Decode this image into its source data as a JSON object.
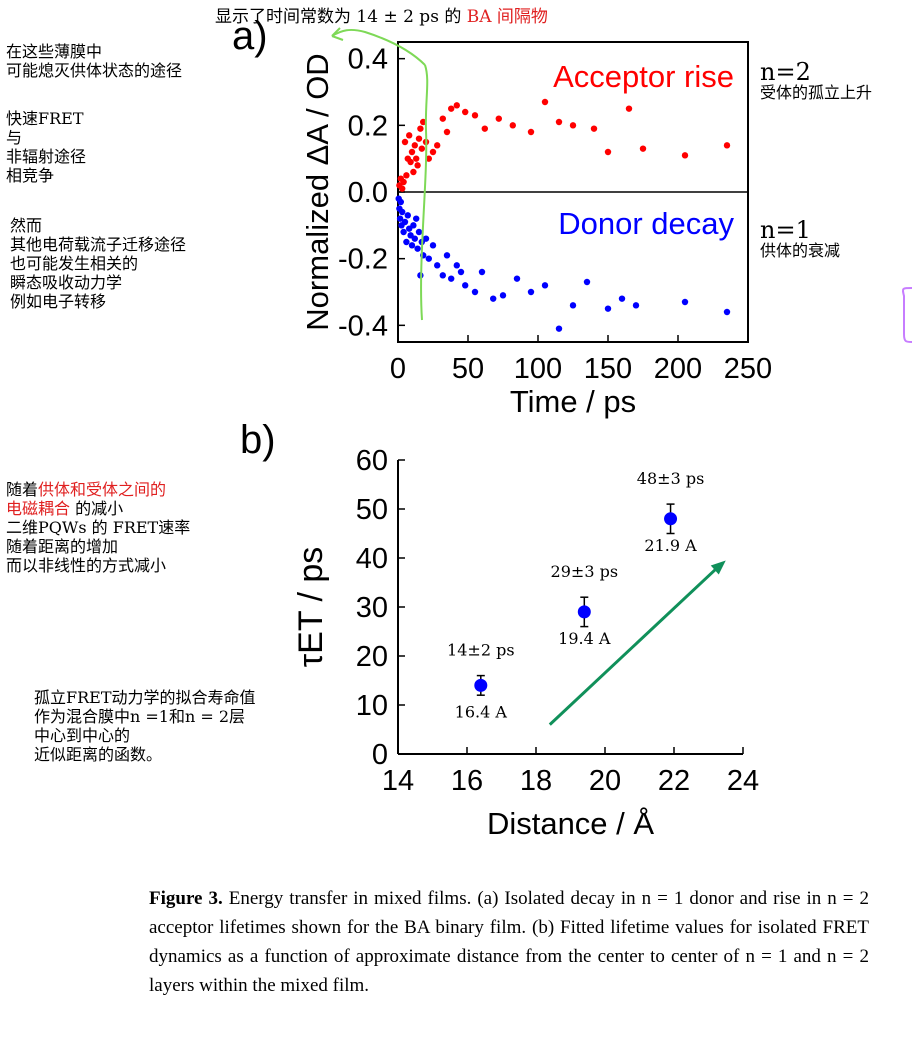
{
  "top_annotation": {
    "prefix": "显示了时间常数为 14 ± 2 ps 的 ",
    "highlight": "BA 间隔物"
  },
  "left_notes_a": {
    "block1": [
      "在这些薄膜中",
      "可能熄灭供体状态的途径"
    ],
    "block2": [
      "快速FRET",
      "与",
      "非辐射途径",
      "相竞争"
    ],
    "block3": [
      "然而",
      "其他电荷载流子迁移途径",
      "也可能发生相关的",
      "瞬态吸收动力学",
      "例如电子转移"
    ]
  },
  "left_notes_b": {
    "line1_prefix": "随着",
    "line1_highlight": "供体和受体之间的",
    "line2_highlight": "电磁耦合",
    "line2_suffix": " 的减小",
    "lines": [
      "二维PQWs 的 FRET速率",
      "随着距离的增加",
      "而以非线性的方式减小"
    ]
  },
  "left_notes_c": [
    "孤立FRET动力学的拟合寿命值",
    "作为混合膜中n =1和n = 2层",
    "中心到中心的",
    "近似距离的函数。"
  ],
  "right_notes": {
    "n2": "n=2",
    "n2_desc": "受体的孤立上升",
    "n1": "n=1",
    "n1_desc": "供体的衰减"
  },
  "panel_a_label": "a)",
  "panel_b_label": "b)",
  "caption": {
    "label": "Figure 3.",
    "text": " Energy transfer in mixed films. (a) Isolated decay in n = 1 donor and rise in n = 2 acceptor lifetimes shown for the BA binary film. (b) Fitted lifetime values for isolated FRET dynamics as a function of approximate distance from the center to center of n = 1 and n = 2 layers within the mixed film."
  },
  "colors": {
    "acceptor": "#ff0000",
    "donor": "#0000ff",
    "highlight": "#e02020",
    "arrow": "#10905a",
    "overlay_line": "#7ed957"
  },
  "chart_data": [
    {
      "type": "scatter",
      "xlabel": "Time / ps",
      "ylabel": "Normalized ΔA / OD",
      "xlim": [
        0,
        250
      ],
      "ylim": [
        -0.45,
        0.45
      ],
      "xticks": [
        "0",
        "50",
        "100",
        "150",
        "200",
        "250"
      ],
      "yticks": [
        "-0.4",
        "-0.2",
        "0.0",
        "0.2",
        "0.4"
      ],
      "annotations": [
        "Acceptor rise",
        "Donor decay"
      ],
      "zero_line": true,
      "series": [
        {
          "name": "Acceptor rise",
          "x": [
            1,
            2,
            3,
            4,
            5,
            6,
            7,
            8,
            9,
            10,
            11,
            12,
            13,
            14,
            15,
            16,
            17,
            18,
            20,
            22,
            25,
            28,
            32,
            35,
            38,
            42,
            48,
            55,
            62,
            72,
            82,
            95,
            105,
            115,
            125,
            140,
            150,
            165,
            175,
            205,
            235
          ],
          "y": [
            0.02,
            0.04,
            0.01,
            0.03,
            0.15,
            0.05,
            0.1,
            0.17,
            0.09,
            0.12,
            0.06,
            0.14,
            0.1,
            0.08,
            0.16,
            0.19,
            0.13,
            0.21,
            0.15,
            0.1,
            0.12,
            0.14,
            0.22,
            0.18,
            0.25,
            0.26,
            0.24,
            0.23,
            0.19,
            0.22,
            0.2,
            0.18,
            0.27,
            0.21,
            0.2,
            0.19,
            0.12,
            0.25,
            0.13,
            0.11,
            0.14
          ]
        },
        {
          "name": "Donor decay",
          "x": [
            0.5,
            1,
            1.5,
            2,
            2.5,
            3,
            4,
            5,
            6,
            7,
            8,
            9,
            10,
            11,
            12,
            13,
            14,
            15,
            16,
            17,
            18,
            20,
            22,
            25,
            28,
            32,
            35,
            38,
            42,
            45,
            48,
            55,
            60,
            68,
            75,
            85,
            95,
            105,
            115,
            125,
            135,
            150,
            160,
            170,
            205,
            235
          ],
          "y": [
            -0.02,
            -0.05,
            -0.08,
            -0.03,
            -0.1,
            -0.06,
            -0.12,
            -0.09,
            -0.15,
            -0.07,
            -0.11,
            -0.13,
            -0.16,
            -0.1,
            -0.14,
            -0.08,
            -0.17,
            -0.12,
            -0.25,
            -0.15,
            -0.19,
            -0.14,
            -0.2,
            -0.16,
            -0.22,
            -0.25,
            -0.19,
            -0.26,
            -0.22,
            -0.24,
            -0.28,
            -0.3,
            -0.24,
            -0.32,
            -0.31,
            -0.26,
            -0.3,
            -0.28,
            -0.41,
            -0.34,
            -0.27,
            -0.35,
            -0.32,
            -0.34,
            -0.33,
            -0.36
          ]
        }
      ]
    },
    {
      "type": "scatter",
      "xlabel": "Distance / Å",
      "ylabel": "τET / ps",
      "xlim": [
        14,
        24
      ],
      "ylim": [
        0,
        60
      ],
      "xticks": [
        "14",
        "16",
        "18",
        "20",
        "22",
        "24"
      ],
      "yticks": [
        "0",
        "10",
        "20",
        "30",
        "40",
        "50",
        "60"
      ],
      "points": [
        {
          "x": 16.4,
          "y": 14,
          "err": 2,
          "label_top": "14±2 ps",
          "label_bottom": "16.4 A"
        },
        {
          "x": 19.4,
          "y": 29,
          "err": 3,
          "label_top": "29±3 ps",
          "label_bottom": "19.4 A"
        },
        {
          "x": 21.9,
          "y": 48,
          "err": 3,
          "label_top": "48±3 ps",
          "label_bottom": "21.9 A"
        }
      ]
    }
  ]
}
